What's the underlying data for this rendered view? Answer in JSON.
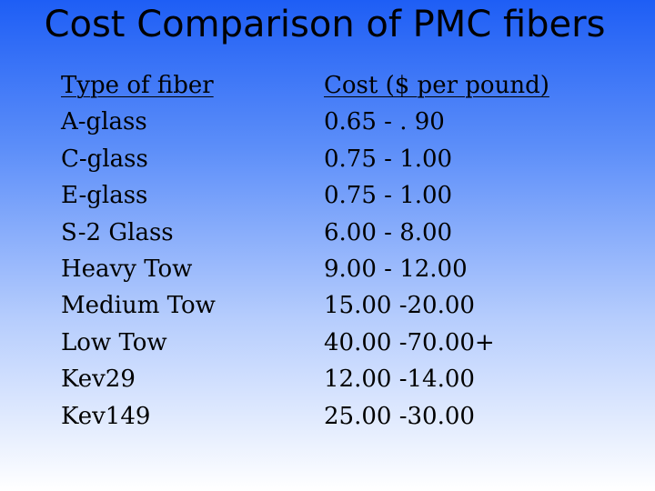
{
  "title": "Cost Comparison of PMC fibers",
  "table": {
    "headers": {
      "type": "Type of fiber",
      "cost": "Cost ($ per pound)"
    },
    "rows": [
      {
        "type": "A-glass",
        "cost": "0.65 - . 90"
      },
      {
        "type": "C-glass",
        "cost": "0.75 - 1.00"
      },
      {
        "type": "E-glass",
        "cost": "0.75 - 1.00"
      },
      {
        "type": "S-2 Glass",
        "cost": "6.00 - 8.00"
      },
      {
        "type": "Heavy Tow",
        "cost": "9.00 - 12.00"
      },
      {
        "type": "Medium Tow",
        "cost": "15.00 -20.00"
      },
      {
        "type": "Low Tow",
        "cost": "40.00 -70.00+"
      },
      {
        "type": "Kev29",
        "cost": "12.00 -14.00"
      },
      {
        "type": "Kev149",
        "cost": "25.00 -30.00"
      }
    ]
  },
  "colors": {
    "background_top": "#1e5ef5",
    "background_bottom": "#ffffff",
    "text": "#000000"
  }
}
